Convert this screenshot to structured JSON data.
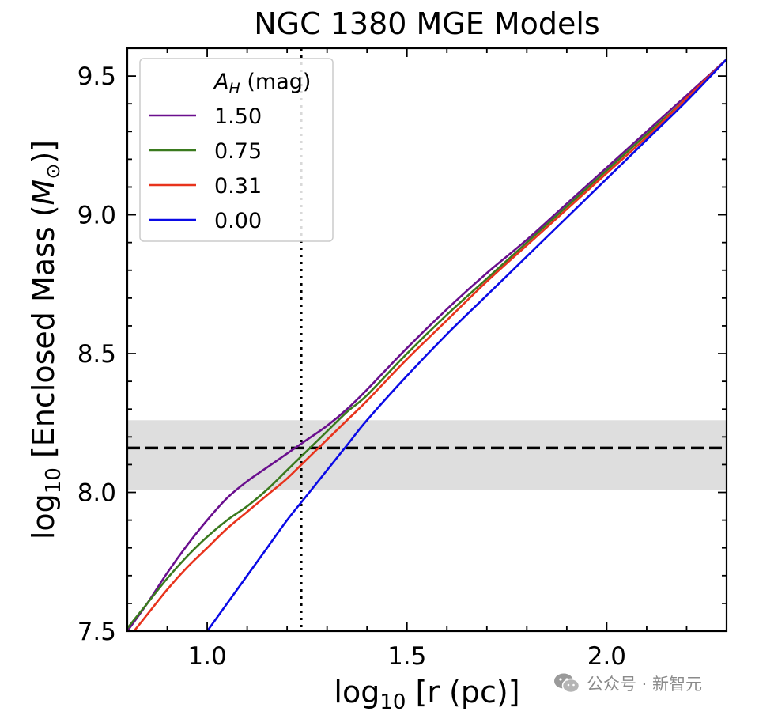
{
  "chart_data": {
    "type": "line",
    "title": "NGC 1380 MGE Models",
    "xlabel": {
      "base": "log",
      "sub": "10",
      "rest": " [r (pc)]"
    },
    "ylabel": {
      "base": "log",
      "sub": "10",
      "rest": " [Enclosed Mass (",
      "sym": "M",
      "symsub": "⊙",
      "end": ")]"
    },
    "xlim": [
      0.8,
      2.3
    ],
    "ylim": [
      7.5,
      9.6
    ],
    "x_major_ticks": [
      1.0,
      1.5,
      2.0
    ],
    "x_tick_labels": [
      "1.0",
      "1.5",
      "2.0"
    ],
    "x_minor_step": 0.1,
    "y_major_ticks": [
      7.5,
      8.0,
      8.5,
      9.0,
      9.5
    ],
    "y_tick_labels": [
      "7.5",
      "8.0",
      "8.5",
      "9.0",
      "9.5"
    ],
    "y_minor_step": 0.1,
    "grid": false,
    "legend": {
      "placement": "top-left",
      "title_sym": "A",
      "title_sub": "H",
      "title_rest": " (mag)"
    },
    "series": [
      {
        "name": "1.50",
        "color": "#6a0f8e",
        "x": [
          0.8,
          0.85,
          0.9,
          0.95,
          1.0,
          1.05,
          1.1,
          1.15,
          1.2,
          1.25,
          1.3,
          1.35,
          1.4,
          1.5,
          1.6,
          1.7,
          1.8,
          1.9,
          2.0,
          2.1,
          2.2,
          2.3
        ],
        "y": [
          7.5,
          7.6,
          7.71,
          7.81,
          7.9,
          7.98,
          8.04,
          8.09,
          8.14,
          8.19,
          8.24,
          8.3,
          8.37,
          8.52,
          8.66,
          8.79,
          8.91,
          9.04,
          9.17,
          9.3,
          9.43,
          9.56
        ]
      },
      {
        "name": "0.75",
        "color": "#3a7a1e",
        "x": [
          0.8,
          0.85,
          0.9,
          0.95,
          1.0,
          1.05,
          1.1,
          1.15,
          1.2,
          1.25,
          1.3,
          1.35,
          1.4,
          1.5,
          1.6,
          1.7,
          1.8,
          1.9,
          2.0,
          2.1,
          2.2,
          2.3
        ],
        "y": [
          7.51,
          7.6,
          7.69,
          7.77,
          7.84,
          7.9,
          7.95,
          8.01,
          8.08,
          8.15,
          8.22,
          8.29,
          8.35,
          8.5,
          8.64,
          8.77,
          8.9,
          9.03,
          9.16,
          9.29,
          9.42,
          9.56
        ]
      },
      {
        "name": "0.31",
        "color": "#e8331c",
        "x": [
          0.8,
          0.85,
          0.9,
          0.95,
          1.0,
          1.05,
          1.1,
          1.15,
          1.2,
          1.25,
          1.3,
          1.35,
          1.4,
          1.5,
          1.6,
          1.7,
          1.8,
          1.9,
          2.0,
          2.1,
          2.2,
          2.3
        ],
        "y": [
          7.47,
          7.56,
          7.65,
          7.73,
          7.8,
          7.87,
          7.93,
          7.99,
          8.05,
          8.12,
          8.19,
          8.26,
          8.33,
          8.48,
          8.62,
          8.76,
          8.89,
          9.02,
          9.15,
          9.28,
          9.42,
          9.56
        ]
      },
      {
        "name": "0.00",
        "color": "#0a0ae6",
        "x": [
          1.0,
          1.05,
          1.1,
          1.15,
          1.2,
          1.25,
          1.3,
          1.35,
          1.4,
          1.5,
          1.6,
          1.7,
          1.8,
          1.9,
          2.0,
          2.1,
          2.2,
          2.3
        ],
        "y": [
          7.5,
          7.6,
          7.7,
          7.8,
          7.9,
          7.99,
          8.08,
          8.17,
          8.26,
          8.42,
          8.57,
          8.71,
          8.85,
          8.99,
          9.13,
          9.27,
          9.41,
          9.56
        ]
      }
    ],
    "annotations": {
      "hline_dashed_y": 8.16,
      "shaded_band_y": [
        8.01,
        8.26
      ],
      "vline_dotted_x": 1.235,
      "band_color": "#dedede"
    }
  },
  "watermark": {
    "text": "公众号 · 新智元",
    "icon": "wechat-icon"
  }
}
